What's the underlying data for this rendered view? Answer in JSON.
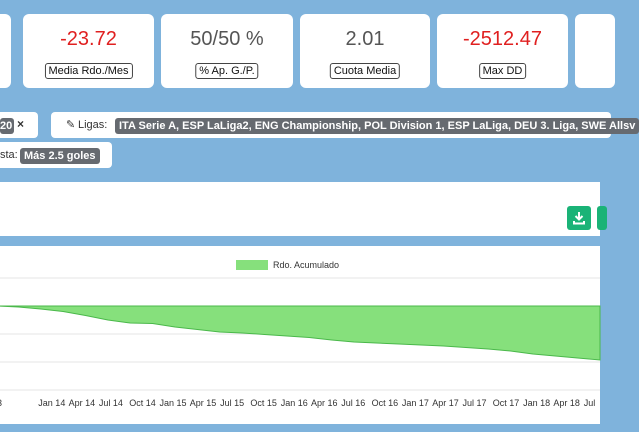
{
  "stats": [
    {
      "value": "-23.72",
      "label": "Media Rdo./Mes",
      "negative": true
    },
    {
      "value": "50/50 %",
      "label": "% Ap. G./P.",
      "negative": false
    },
    {
      "value": "2.01",
      "label": "Cuota Media",
      "negative": false
    },
    {
      "value": "-2512.47",
      "label": "Max DD",
      "negative": true
    }
  ],
  "filters": {
    "partial_chip_tail": "20",
    "remove_glyph": "×",
    "ligas_label": "Ligas:",
    "ligas_value": "ITA Serie A, ESP LaLiga2, ENG Championship, POL Division 1, ESP LaLiga, DEU 3. Liga, SWE Allsv",
    "apuesta_label_tail": "sta:",
    "apuesta_value": "Más 2.5 goles"
  },
  "chart_data": {
    "type": "area",
    "legend": [
      "Rdo. Acumulado"
    ],
    "legend_position": "top-center",
    "series": [
      {
        "name": "Rdo. Acumulado",
        "color": "#86e07c",
        "values": [
          0,
          -20,
          -60,
          -110,
          -190,
          -280,
          -340,
          -350,
          -420,
          -470,
          -520,
          -540,
          -570,
          -600,
          -630,
          -680,
          -720,
          -740,
          -760,
          -780,
          -800,
          -830,
          -860,
          -900,
          -960,
          -1000,
          -1040,
          -1080
        ]
      }
    ],
    "x_tick_labels": [
      "3",
      "Jan 14",
      "Apr 14",
      "Jul 14",
      "Oct 14",
      "Jan 15",
      "Apr 15",
      "Jul 15",
      "Oct 15",
      "Jan 16",
      "Apr 16",
      "Jul 16",
      "Oct 16",
      "Jan 17",
      "Apr 17",
      "Jul 17",
      "Oct 17",
      "Jan 18",
      "Apr 18",
      "Jul"
    ],
    "grid": true
  },
  "colors": {
    "background": "#7fb3dc",
    "negative_text": "#e02020",
    "download_button": "#1ab377",
    "chip": "#666a70"
  },
  "icons": {
    "download": "download-icon",
    "edit": "pencil-icon",
    "remove": "close-icon"
  }
}
